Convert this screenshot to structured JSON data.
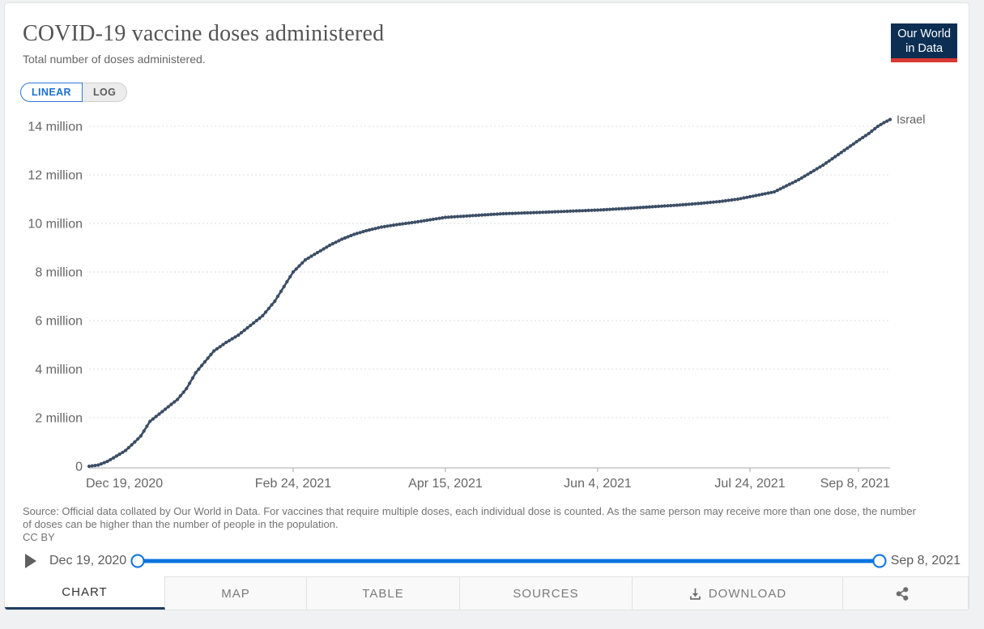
{
  "header": {
    "title": "COVID-19 vaccine doses administered",
    "subtitle": "Total number of doses administered.",
    "logo": {
      "line1": "Our World",
      "line2": "in Data",
      "bg": "#0d2e53",
      "stripe": "#d83932"
    }
  },
  "controls": {
    "linear_label": "LINEAR",
    "log_label": "LOG",
    "accent_blue": "#1a70d4"
  },
  "chart_data": {
    "type": "line",
    "title": "COVID-19 vaccine doses administered",
    "xlabel": "",
    "ylabel": "",
    "grid": "dashed-horizontal",
    "legend_position": "end-of-line-label",
    "xlim": [
      "2020-12-19",
      "2021-09-08"
    ],
    "ylim": [
      0,
      14.3
    ],
    "y_unit": "million doses",
    "y_ticks": [
      {
        "label": "0",
        "value": 0
      },
      {
        "label": "2 million",
        "value": 2
      },
      {
        "label": "4 million",
        "value": 4
      },
      {
        "label": "6 million",
        "value": 6
      },
      {
        "label": "8 million",
        "value": 8
      },
      {
        "label": "10 million",
        "value": 10
      },
      {
        "label": "12 million",
        "value": 12
      },
      {
        "label": "14 million",
        "value": 14
      }
    ],
    "x_ticks": [
      {
        "label": "Dec 19, 2020",
        "date": "2020-12-19"
      },
      {
        "label": "Feb 24, 2021",
        "date": "2021-02-24"
      },
      {
        "label": "Apr 15, 2021",
        "date": "2021-04-15"
      },
      {
        "label": "Jun 4, 2021",
        "date": "2021-06-04"
      },
      {
        "label": "Jul 24, 2021",
        "date": "2021-07-24"
      },
      {
        "label": "Sep 8, 2021",
        "date": "2021-09-08"
      }
    ],
    "series": [
      {
        "name": "Israel",
        "color": "#3C4E66",
        "label_color": "#5f5f5f",
        "points_unit": "million doses",
        "points": [
          [
            "2020-12-19",
            0.0
          ],
          [
            "2020-12-22",
            0.05
          ],
          [
            "2020-12-25",
            0.2
          ],
          [
            "2020-12-28",
            0.42
          ],
          [
            "2020-12-31",
            0.65
          ],
          [
            "2021-01-03",
            1.0
          ],
          [
            "2021-01-05",
            1.25
          ],
          [
            "2021-01-08",
            1.85
          ],
          [
            "2021-01-11",
            2.15
          ],
          [
            "2021-01-14",
            2.45
          ],
          [
            "2021-01-17",
            2.75
          ],
          [
            "2021-01-20",
            3.2
          ],
          [
            "2021-01-23",
            3.85
          ],
          [
            "2021-01-26",
            4.3
          ],
          [
            "2021-01-29",
            4.75
          ],
          [
            "2021-02-02",
            5.1
          ],
          [
            "2021-02-06",
            5.4
          ],
          [
            "2021-02-10",
            5.8
          ],
          [
            "2021-02-14",
            6.2
          ],
          [
            "2021-02-18",
            6.8
          ],
          [
            "2021-02-21",
            7.4
          ],
          [
            "2021-02-24",
            8.0
          ],
          [
            "2021-02-28",
            8.5
          ],
          [
            "2021-03-04",
            8.8
          ],
          [
            "2021-03-08",
            9.1
          ],
          [
            "2021-03-12",
            9.35
          ],
          [
            "2021-03-16",
            9.55
          ],
          [
            "2021-03-20",
            9.7
          ],
          [
            "2021-03-25",
            9.85
          ],
          [
            "2021-03-30",
            9.95
          ],
          [
            "2021-04-05",
            10.05
          ],
          [
            "2021-04-10",
            10.15
          ],
          [
            "2021-04-15",
            10.25
          ],
          [
            "2021-04-25",
            10.33
          ],
          [
            "2021-05-04",
            10.4
          ],
          [
            "2021-05-15",
            10.45
          ],
          [
            "2021-05-25",
            10.5
          ],
          [
            "2021-06-04",
            10.55
          ],
          [
            "2021-06-14",
            10.62
          ],
          [
            "2021-06-21",
            10.68
          ],
          [
            "2021-06-30",
            10.75
          ],
          [
            "2021-07-07",
            10.82
          ],
          [
            "2021-07-14",
            10.9
          ],
          [
            "2021-07-20",
            11.0
          ],
          [
            "2021-07-24",
            11.1
          ],
          [
            "2021-07-28",
            11.2
          ],
          [
            "2021-08-01",
            11.3
          ],
          [
            "2021-08-05",
            11.55
          ],
          [
            "2021-08-09",
            11.8
          ],
          [
            "2021-08-13",
            12.1
          ],
          [
            "2021-08-17",
            12.4
          ],
          [
            "2021-08-21",
            12.75
          ],
          [
            "2021-08-25",
            13.1
          ],
          [
            "2021-08-29",
            13.45
          ],
          [
            "2021-09-01",
            13.7
          ],
          [
            "2021-09-04",
            14.0
          ],
          [
            "2021-09-06",
            14.15
          ],
          [
            "2021-09-08",
            14.28
          ]
        ]
      }
    ]
  },
  "footer": {
    "source": "Source: Official data collated by Our World in Data. For vaccines that require multiple doses, each individual dose is counted. As the same person may receive more than one dose, the number of doses can be higher than the number of people in the population.",
    "license": "CC BY"
  },
  "timeline": {
    "start_label": "Dec 19, 2020",
    "end_label": "Sep 8, 2021",
    "slider_color": "#0b74e0"
  },
  "tabs": [
    {
      "label": "CHART",
      "active": true
    },
    {
      "label": "MAP"
    },
    {
      "label": "TABLE"
    },
    {
      "label": "SOURCES"
    },
    {
      "label": "DOWNLOAD",
      "icon": "download-icon"
    },
    {
      "label": "",
      "icon": "share-icon"
    }
  ]
}
